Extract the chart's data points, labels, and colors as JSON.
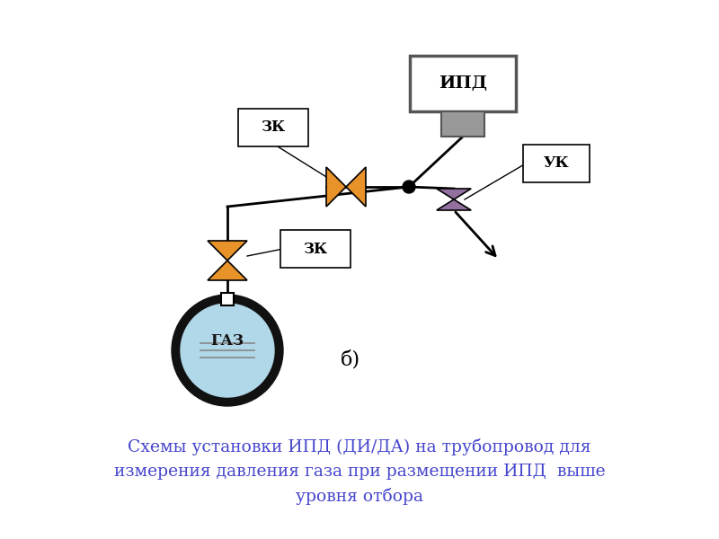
{
  "bg_color": "#ffffff",
  "title_text": "Схемы установки ИПД (ДИ/ДА) на трубопровод для\nизмерения давления газа при размещении ИПД  выше\nуровня отбора",
  "title_color": "#4444cc",
  "title_fontsize": 13.5,
  "label_b": "б)",
  "ipd_label": "ИПД",
  "zk_label": "ЗК",
  "uk_label": "УК",
  "gaz_label": "ГАЗ",
  "orange_color": "#E8922A",
  "purple_color": "#9370a0",
  "gray_dark": "#888888",
  "gray_medium": "#999999",
  "gray_light": "#bbbbbb",
  "black": "#000000",
  "pipe_color": "#000000",
  "gaz_fill": "#b0d8e8",
  "gaz_border": "#111111"
}
